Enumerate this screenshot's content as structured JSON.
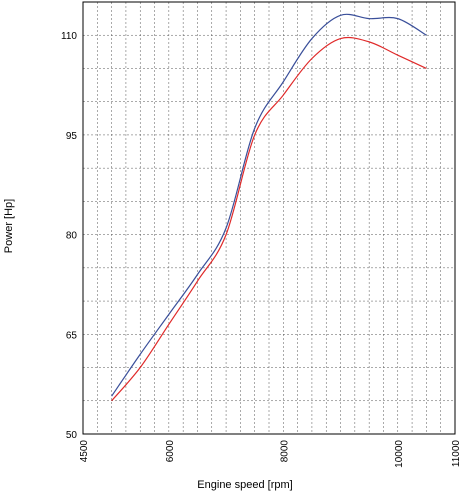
{
  "chart_data": {
    "type": "line",
    "title": "",
    "xlabel": "Engine speed [rpm]",
    "ylabel": "Power [Hp]",
    "xlim": [
      4500,
      11000
    ],
    "ylim": [
      50,
      115
    ],
    "x_ticks": [
      4500,
      6000,
      8000,
      10000,
      11000
    ],
    "x_tick_labels": [
      "4500",
      "6000",
      "8000",
      "10000",
      "11000"
    ],
    "y_ticks": [
      50,
      65,
      80,
      95,
      110
    ],
    "y_tick_labels": [
      "50",
      "65",
      "80",
      "95",
      "110"
    ],
    "grid": true,
    "legend": "none",
    "series": [
      {
        "color": "#3a4f9a",
        "x": [
          5000,
          5500,
          6000,
          6500,
          7000,
          7500,
          8000,
          8500,
          9000,
          9500,
          10000,
          10500
        ],
        "values": [
          55.7,
          62.0,
          68.0,
          74.0,
          81.0,
          96.0,
          103.0,
          109.5,
          113.0,
          112.5,
          112.5,
          110.0
        ]
      },
      {
        "color": "#e02a2a",
        "x": [
          5000,
          5500,
          6000,
          6500,
          7000,
          7500,
          8000,
          8500,
          9000,
          9500,
          10000,
          10500
        ],
        "values": [
          55.0,
          60.0,
          66.5,
          73.0,
          80.0,
          95.0,
          101.0,
          106.5,
          109.5,
          109.0,
          107.0,
          105.0
        ]
      }
    ]
  }
}
